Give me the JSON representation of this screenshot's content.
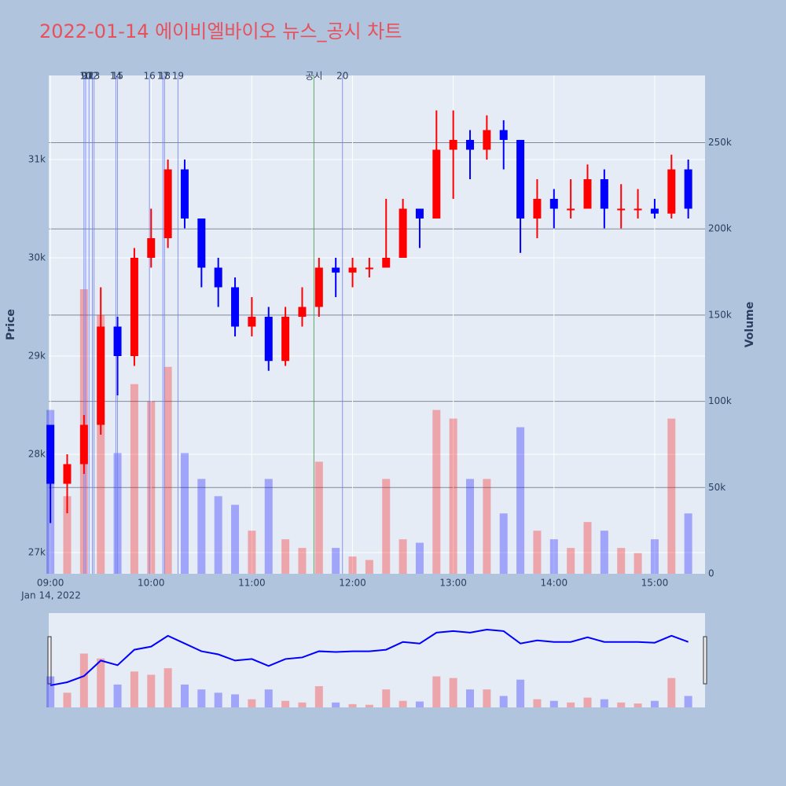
{
  "chart_data": {
    "type": "candlestick",
    "title": "2022-01-14 에이비엘바이오 뉴스_공시 차트",
    "y_label": "Price",
    "y2_label": "Volume",
    "up_color": "#ff0000",
    "down_color": "#0000ff",
    "x": [
      "09:00",
      "09:10",
      "09:20",
      "09:30",
      "09:40",
      "09:50",
      "10:00",
      "10:10",
      "10:20",
      "10:30",
      "10:40",
      "10:50",
      "11:00",
      "11:10",
      "11:20",
      "11:30",
      "11:40",
      "11:50",
      "12:00",
      "12:10",
      "12:20",
      "12:30",
      "12:40",
      "12:50",
      "13:00",
      "13:10",
      "13:20",
      "13:30",
      "13:40",
      "13:50",
      "14:00",
      "14:10",
      "14:20",
      "14:30",
      "14:40",
      "14:50",
      "15:00",
      "15:10",
      "15:20"
    ],
    "open": [
      28300,
      27700,
      27900,
      28300,
      29300,
      29000,
      30000,
      30200,
      30900,
      30400,
      29900,
      29700,
      29300,
      29400,
      28950,
      29400,
      29500,
      29900,
      29850,
      29900,
      29900,
      30000,
      30500,
      30400,
      31100,
      31200,
      31100,
      31300,
      31200,
      30400,
      30600,
      30500,
      30500,
      30800,
      30500,
      30500,
      30500,
      30450,
      30900
    ],
    "high": [
      28300,
      28000,
      28400,
      29700,
      29400,
      30100,
      30500,
      31000,
      31000,
      30400,
      30000,
      29800,
      29600,
      29500,
      29500,
      29700,
      30000,
      30000,
      30000,
      30000,
      30600,
      30600,
      30500,
      31500,
      31500,
      31300,
      31450,
      31400,
      31200,
      30800,
      30700,
      30800,
      30950,
      30900,
      30750,
      30700,
      30600,
      31050,
      31000
    ],
    "low": [
      27300,
      27400,
      27800,
      28200,
      28600,
      28900,
      29900,
      30100,
      30300,
      29700,
      29500,
      29200,
      29200,
      28850,
      28900,
      29300,
      29400,
      29600,
      29700,
      29800,
      29900,
      30000,
      30100,
      30400,
      30600,
      30800,
      31000,
      30900,
      30050,
      30200,
      30300,
      30400,
      30500,
      30300,
      30300,
      30400,
      30400,
      30400,
      30400
    ],
    "close": [
      27700,
      27900,
      28300,
      29300,
      29000,
      30000,
      30200,
      30900,
      30400,
      29900,
      29700,
      29300,
      29400,
      28950,
      29400,
      29500,
      29900,
      29850,
      29900,
      29900,
      30000,
      30500,
      30400,
      31100,
      31200,
      31100,
      31300,
      31200,
      30400,
      30600,
      30500,
      30500,
      30800,
      30500,
      30500,
      30500,
      30450,
      30900,
      30500
    ],
    "volume": [
      95000,
      45000,
      165000,
      150000,
      70000,
      110000,
      100000,
      120000,
      70000,
      55000,
      45000,
      40000,
      25000,
      55000,
      20000,
      15000,
      65000,
      15000,
      10000,
      8000,
      55000,
      20000,
      18000,
      95000,
      90000,
      55000,
      55000,
      35000,
      85000,
      25000,
      20000,
      15000,
      30000,
      25000,
      15000,
      12000,
      20000,
      90000,
      35000
    ],
    "xlim": [
      "08:59",
      "15:30"
    ],
    "xticks": [
      "09:00",
      "10:00",
      "11:00",
      "12:00",
      "13:00",
      "14:00",
      "15:00"
    ],
    "x_date_label": "Jan 14, 2022",
    "ylim": [
      26784,
      31856
    ],
    "yticks": [
      {
        "value": 27000,
        "label": "27k"
      },
      {
        "value": 28000,
        "label": "28k"
      },
      {
        "value": 29000,
        "label": "29k"
      },
      {
        "value": 30000,
        "label": "30k"
      },
      {
        "value": 31000,
        "label": "31k"
      }
    ],
    "y2lim": [
      0,
      289000
    ],
    "y2ticks": [
      0,
      {
        "value": 50000,
        "label": "50k"
      },
      {
        "value": 100000,
        "label": "100k"
      },
      {
        "value": 150000,
        "label": "150k"
      },
      {
        "value": 200000,
        "label": "200k"
      },
      {
        "value": 250000,
        "label": "250k"
      }
    ],
    "events": [
      {
        "x": "09:20",
        "label": "9",
        "color": "#6f7ff5"
      },
      {
        "x": "09:21",
        "label": "10",
        "color": "#6f7ff5"
      },
      {
        "x": "09:23",
        "label": "11",
        "color": "#6f7ff5"
      },
      {
        "x": "09:25",
        "label": "12",
        "color": "#6f7ff5"
      },
      {
        "x": "09:26",
        "label": "13",
        "color": "#6f7ff5"
      },
      {
        "x": "09:39",
        "label": "14",
        "color": "#6f7ff5"
      },
      {
        "x": "09:40",
        "label": "15",
        "color": "#6f7ff5"
      },
      {
        "x": "09:59",
        "label": "16",
        "color": "#6f7ff5"
      },
      {
        "x": "10:07",
        "label": "17",
        "color": "#6f7ff5"
      },
      {
        "x": "10:08",
        "label": "18",
        "color": "#6f7ff5"
      },
      {
        "x": "10:16",
        "label": "19",
        "color": "#6f7ff5"
      },
      {
        "x": "11:37",
        "label": "공시",
        "color": "#3c9c3c"
      },
      {
        "x": "11:54",
        "label": "20",
        "color": "#6f7ff5"
      }
    ]
  }
}
